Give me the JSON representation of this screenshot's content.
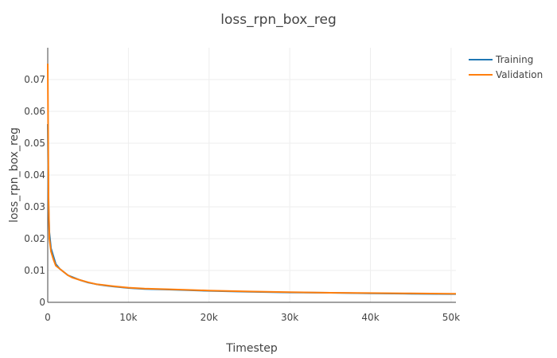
{
  "chart_data": {
    "type": "line",
    "title": "loss_rpn_box_reg",
    "xlabel": "Timestep",
    "ylabel": "loss_rpn_box_reg",
    "xlim": [
      0,
      50600
    ],
    "ylim": [
      0,
      0.08
    ],
    "x_ticks": [
      0,
      10000,
      20000,
      30000,
      40000,
      50000
    ],
    "x_tick_labels": [
      "0",
      "10k",
      "20k",
      "30k",
      "40k",
      "50k"
    ],
    "y_ticks": [
      0,
      0.01,
      0.02,
      0.03,
      0.04,
      0.05,
      0.06,
      0.07
    ],
    "y_tick_labels": [
      "0",
      "0.01",
      "0.02",
      "0.03",
      "0.04",
      "0.05",
      "0.06",
      "0.07"
    ],
    "grid": true,
    "legend_position": "top-right",
    "series": [
      {
        "name": "Training",
        "color": "#1f77b4",
        "x": [
          0,
          100,
          200,
          400,
          700,
          1000,
          1500,
          2000,
          2500,
          3000,
          4000,
          5000,
          6000,
          7000,
          8000,
          10000,
          12000,
          15000,
          20000,
          25000,
          30000,
          35000,
          40000,
          45000,
          50000,
          50600
        ],
        "y": [
          0.056,
          0.03,
          0.022,
          0.017,
          0.0145,
          0.012,
          0.0105,
          0.0095,
          0.0085,
          0.008,
          0.007,
          0.0062,
          0.0057,
          0.0053,
          0.005,
          0.0045,
          0.0042,
          0.004,
          0.0036,
          0.0033,
          0.0031,
          0.003,
          0.0028,
          0.0027,
          0.0026,
          0.0026
        ]
      },
      {
        "name": "Validation",
        "color": "#ff7f0e",
        "x": [
          0,
          100,
          200,
          400,
          700,
          1000,
          1500,
          2000,
          2500,
          3000,
          4000,
          5000,
          6000,
          7000,
          8000,
          10000,
          12000,
          15000,
          20000,
          25000,
          30000,
          35000,
          40000,
          45000,
          50000,
          50600
        ],
        "y": [
          0.075,
          0.033,
          0.02,
          0.016,
          0.0135,
          0.0115,
          0.0105,
          0.0095,
          0.0085,
          0.0078,
          0.007,
          0.0063,
          0.0057,
          0.0054,
          0.0051,
          0.0046,
          0.0043,
          0.0041,
          0.0037,
          0.0034,
          0.0032,
          0.003,
          0.0029,
          0.0028,
          0.0027,
          0.0027
        ]
      }
    ]
  }
}
